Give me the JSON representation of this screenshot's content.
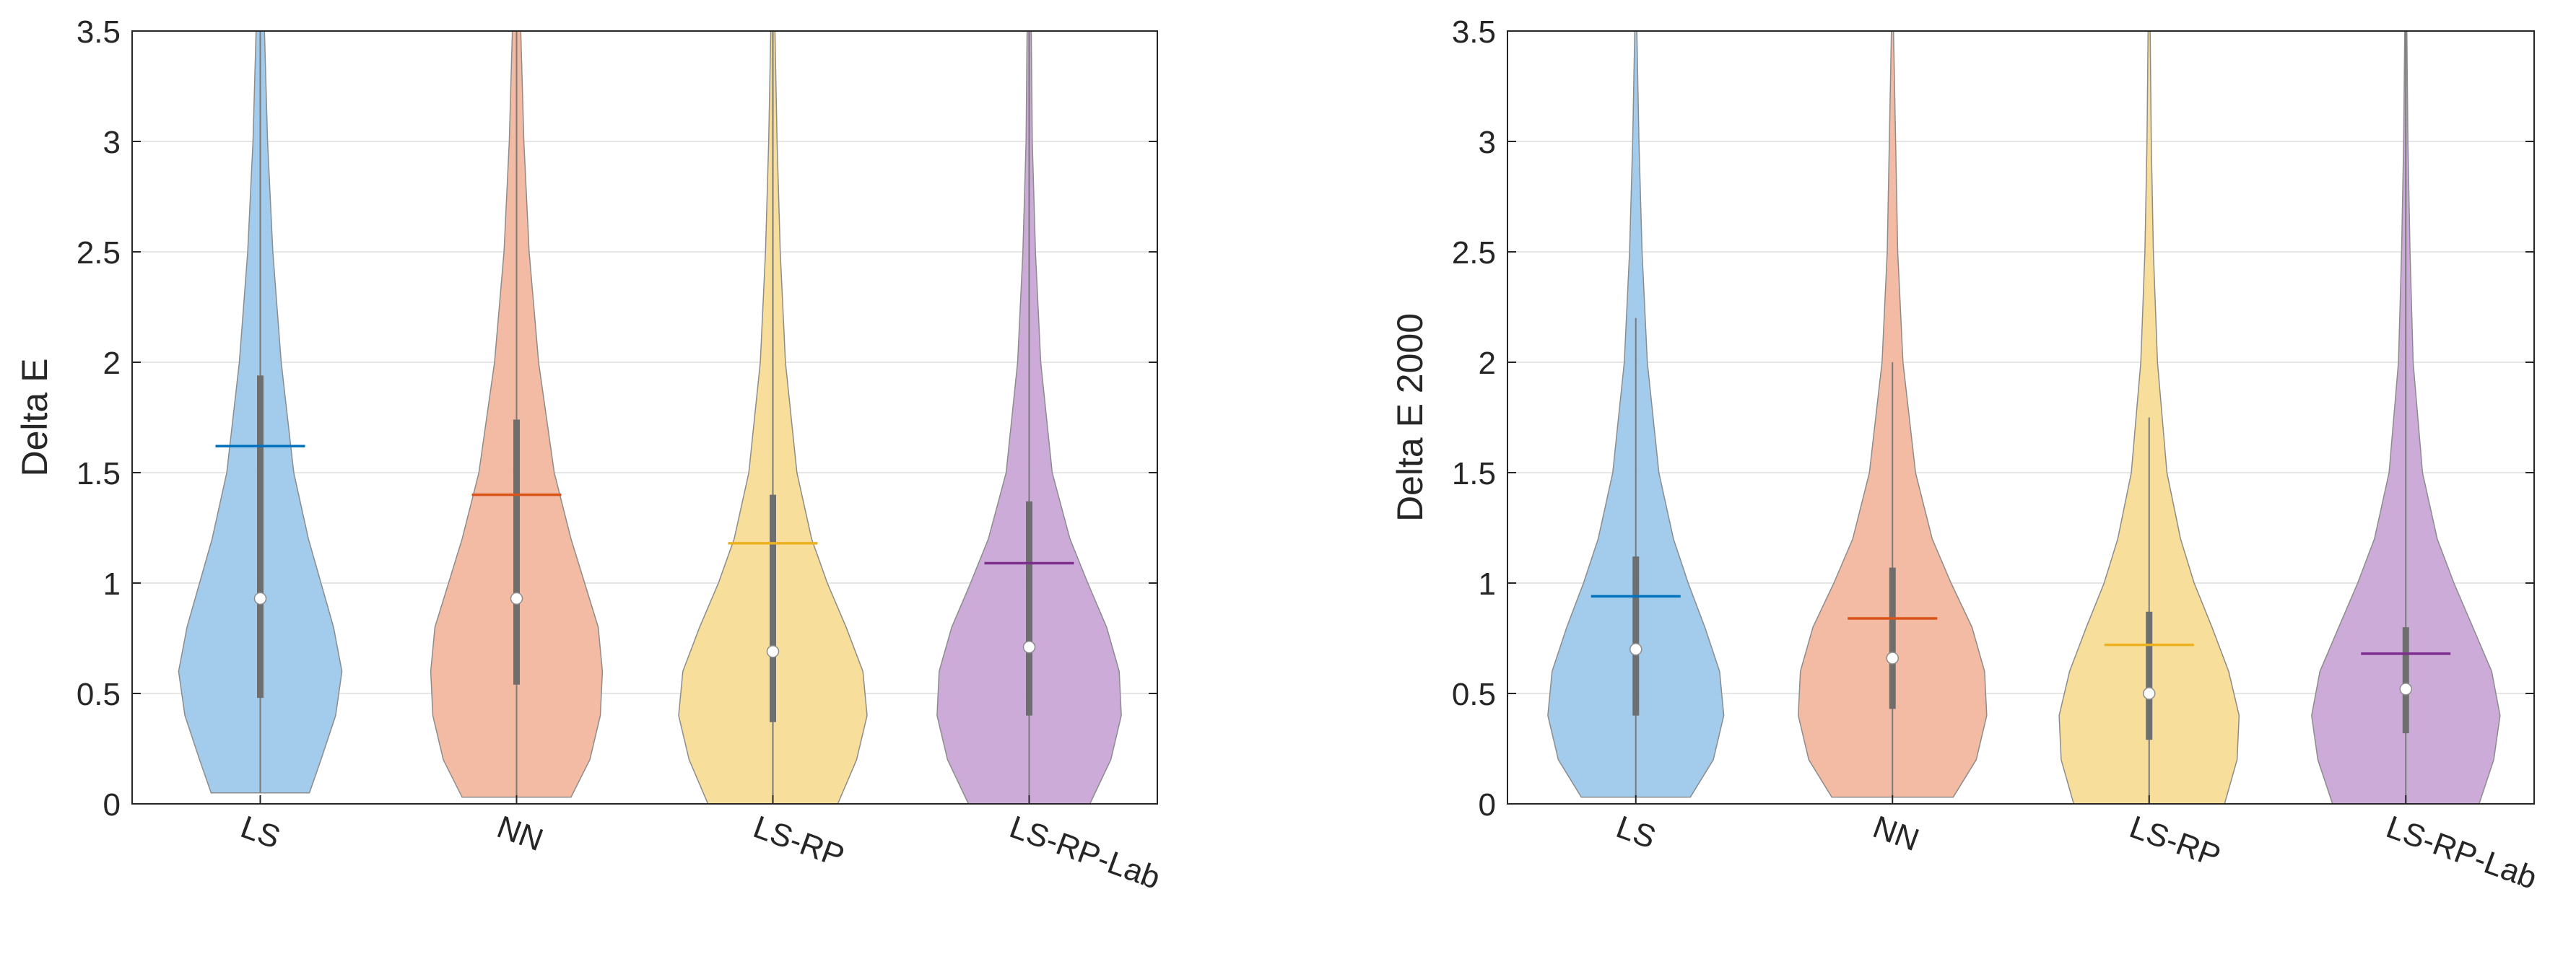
{
  "chart_data": [
    {
      "type": "violin",
      "title": "",
      "xlabel": "",
      "ylabel": "Delta E",
      "ylim": [
        0,
        3.5
      ],
      "yticks": [
        0,
        0.5,
        1,
        1.5,
        2,
        2.5,
        3,
        3.5
      ],
      "ytick_labels": [
        "0",
        "0.5",
        "1",
        "1.5",
        "2",
        "2.5",
        "3",
        "3.5"
      ],
      "grid": true,
      "categories": [
        "LS",
        "NN",
        "LS-RP",
        "LS-RP-Lab"
      ],
      "colors": [
        "#9dc8eb",
        "#f2b79e",
        "#f8dc96",
        "#c9a6d7"
      ],
      "line_colors": [
        "#0072bd",
        "#d95319",
        "#edb120",
        "#7e2f8e"
      ],
      "series": [
        {
          "name": "LS",
          "mean": 1.62,
          "median": 0.93,
          "q1": 0.48,
          "q3": 1.94,
          "whisker_low": 0.05,
          "whisker_high": 3.5,
          "density": [
            [
              0.05,
              0.47
            ],
            [
              0.2,
              0.58
            ],
            [
              0.4,
              0.72
            ],
            [
              0.6,
              0.78
            ],
            [
              0.8,
              0.7
            ],
            [
              1.0,
              0.58
            ],
            [
              1.2,
              0.46
            ],
            [
              1.5,
              0.32
            ],
            [
              2.0,
              0.2
            ],
            [
              2.5,
              0.12
            ],
            [
              3.0,
              0.07
            ],
            [
              3.5,
              0.04
            ]
          ]
        },
        {
          "name": "NN",
          "mean": 1.4,
          "median": 0.93,
          "q1": 0.54,
          "q3": 1.74,
          "whisker_low": 0.03,
          "whisker_high": 3.5,
          "density": [
            [
              0.03,
              0.52
            ],
            [
              0.2,
              0.7
            ],
            [
              0.4,
              0.8
            ],
            [
              0.6,
              0.82
            ],
            [
              0.8,
              0.78
            ],
            [
              1.0,
              0.65
            ],
            [
              1.2,
              0.52
            ],
            [
              1.5,
              0.36
            ],
            [
              2.0,
              0.21
            ],
            [
              2.5,
              0.12
            ],
            [
              3.0,
              0.07
            ],
            [
              3.5,
              0.04
            ]
          ]
        },
        {
          "name": "LS-RP",
          "mean": 1.18,
          "median": 0.69,
          "q1": 0.37,
          "q3": 1.4,
          "whisker_low": 0.0,
          "whisker_high": 3.5,
          "density": [
            [
              0.0,
              0.62
            ],
            [
              0.2,
              0.8
            ],
            [
              0.4,
              0.9
            ],
            [
              0.6,
              0.86
            ],
            [
              0.8,
              0.7
            ],
            [
              1.0,
              0.52
            ],
            [
              1.2,
              0.37
            ],
            [
              1.5,
              0.23
            ],
            [
              2.0,
              0.12
            ],
            [
              2.5,
              0.07
            ],
            [
              3.0,
              0.04
            ],
            [
              3.5,
              0.02
            ]
          ]
        },
        {
          "name": "LS-RP-Lab",
          "mean": 1.09,
          "median": 0.71,
          "q1": 0.4,
          "q3": 1.37,
          "whisker_low": 0.0,
          "whisker_high": 3.5,
          "density": [
            [
              0.0,
              0.58
            ],
            [
              0.2,
              0.78
            ],
            [
              0.4,
              0.88
            ],
            [
              0.6,
              0.86
            ],
            [
              0.8,
              0.74
            ],
            [
              1.0,
              0.56
            ],
            [
              1.2,
              0.39
            ],
            [
              1.5,
              0.22
            ],
            [
              2.0,
              0.11
            ],
            [
              2.5,
              0.06
            ],
            [
              3.0,
              0.03
            ],
            [
              3.5,
              0.02
            ]
          ]
        }
      ]
    },
    {
      "type": "violin",
      "title": "",
      "xlabel": "",
      "ylabel": "Delta E 2000",
      "ylim": [
        0,
        3.5
      ],
      "yticks": [
        0,
        0.5,
        1,
        1.5,
        2,
        2.5,
        3,
        3.5
      ],
      "ytick_labels": [
        "0",
        "0.5",
        "1",
        "1.5",
        "2",
        "2.5",
        "3",
        "3.5"
      ],
      "grid": true,
      "categories": [
        "LS",
        "NN",
        "LS-RP",
        "LS-RP-Lab"
      ],
      "colors": [
        "#9dc8eb",
        "#f2b79e",
        "#f8dc96",
        "#c9a6d7"
      ],
      "line_colors": [
        "#0072bd",
        "#d95319",
        "#edb120",
        "#7e2f8e"
      ],
      "series": [
        {
          "name": "LS",
          "mean": 0.94,
          "median": 0.7,
          "q1": 0.4,
          "q3": 1.12,
          "whisker_low": 0.03,
          "whisker_high": 2.2,
          "density": [
            [
              0.03,
              0.52
            ],
            [
              0.2,
              0.74
            ],
            [
              0.4,
              0.84
            ],
            [
              0.6,
              0.8
            ],
            [
              0.8,
              0.66
            ],
            [
              1.0,
              0.5
            ],
            [
              1.2,
              0.36
            ],
            [
              1.5,
              0.22
            ],
            [
              2.0,
              0.11
            ],
            [
              2.5,
              0.06
            ],
            [
              3.0,
              0.03
            ],
            [
              3.5,
              0.01
            ]
          ]
        },
        {
          "name": "NN",
          "mean": 0.84,
          "median": 0.66,
          "q1": 0.43,
          "q3": 1.07,
          "whisker_low": 0.03,
          "whisker_high": 2.0,
          "density": [
            [
              0.03,
              0.58
            ],
            [
              0.2,
              0.8
            ],
            [
              0.4,
              0.9
            ],
            [
              0.6,
              0.88
            ],
            [
              0.8,
              0.76
            ],
            [
              1.0,
              0.56
            ],
            [
              1.2,
              0.38
            ],
            [
              1.5,
              0.22
            ],
            [
              2.0,
              0.1
            ],
            [
              2.5,
              0.05
            ],
            [
              3.0,
              0.03
            ],
            [
              3.5,
              0.01
            ]
          ]
        },
        {
          "name": "LS-RP",
          "mean": 0.72,
          "median": 0.5,
          "q1": 0.29,
          "q3": 0.87,
          "whisker_low": 0.0,
          "whisker_high": 1.75,
          "density": [
            [
              0.0,
              0.72
            ],
            [
              0.2,
              0.84
            ],
            [
              0.4,
              0.86
            ],
            [
              0.6,
              0.76
            ],
            [
              0.8,
              0.6
            ],
            [
              1.0,
              0.43
            ],
            [
              1.2,
              0.3
            ],
            [
              1.5,
              0.17
            ],
            [
              2.0,
              0.08
            ],
            [
              2.5,
              0.04
            ],
            [
              3.0,
              0.02
            ],
            [
              3.5,
              0.01
            ]
          ]
        },
        {
          "name": "LS-RP-Lab",
          "mean": 0.68,
          "median": 0.52,
          "q1": 0.32,
          "q3": 0.8,
          "whisker_low": 0.0,
          "whisker_high": 3.5,
          "density": [
            [
              0.0,
              0.7
            ],
            [
              0.2,
              0.84
            ],
            [
              0.4,
              0.9
            ],
            [
              0.6,
              0.82
            ],
            [
              0.8,
              0.64
            ],
            [
              1.0,
              0.46
            ],
            [
              1.2,
              0.3
            ],
            [
              1.5,
              0.16
            ],
            [
              2.0,
              0.07
            ],
            [
              2.5,
              0.04
            ],
            [
              3.0,
              0.02
            ],
            [
              3.5,
              0.01
            ]
          ]
        }
      ]
    }
  ]
}
